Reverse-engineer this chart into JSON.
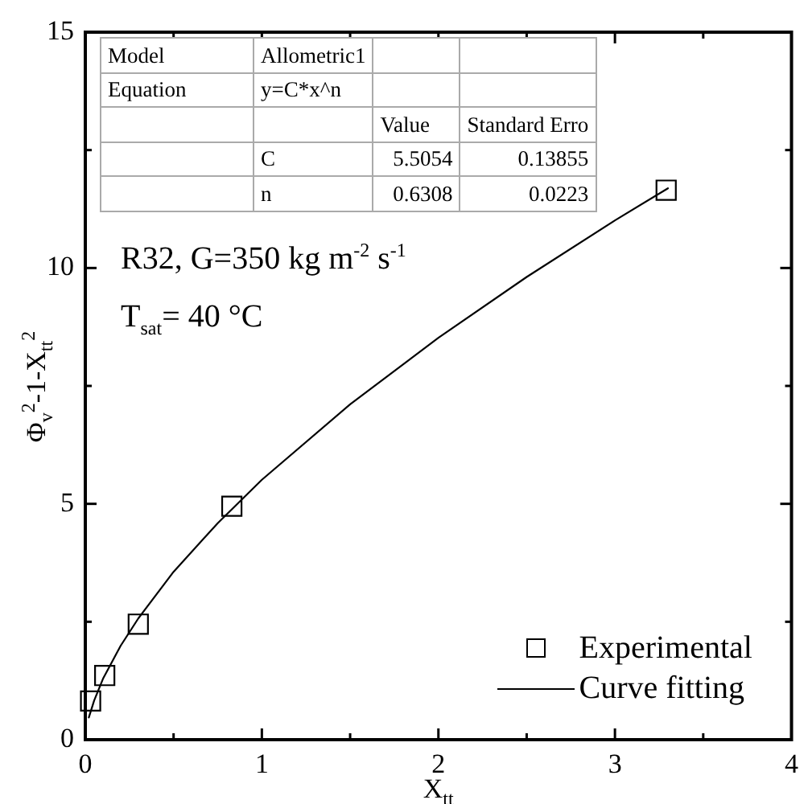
{
  "chart_data": {
    "type": "scatter",
    "xlabel": "X$_{tt}$",
    "ylabel": "Φ$_{v}$$^{2}$-1-X$_{tt}$$^{2}$",
    "xlim": [
      0,
      4
    ],
    "xticks": [
      0,
      {
        "value": 0.5,
        "label": null
      },
      1,
      {
        "value": 1.5,
        "label": null
      },
      2,
      {
        "value": 2.5,
        "label": null
      },
      3,
      {
        "value": 3.5,
        "label": null
      },
      4
    ],
    "ylim": [
      0,
      15
    ],
    "yticks": [
      0,
      {
        "value": 2.5,
        "label": null
      },
      5,
      {
        "value": 7.5,
        "label": null
      },
      10,
      {
        "value": 12.5,
        "label": null
      },
      15
    ],
    "grid": false,
    "legend": "bottom right",
    "series": [
      {
        "name": "Experimental",
        "type": "scatter",
        "marker": "square",
        "color": "#000000",
        "x": [
          0.03,
          0.11,
          0.3,
          0.83,
          3.29
        ],
        "values": [
          0.82,
          1.36,
          2.45,
          4.95,
          11.65
        ]
      },
      {
        "name": "Curve fitting",
        "type": "line",
        "marker": "none",
        "line_style": "solid",
        "color": "#000000",
        "x": [
          0.02,
          0.05,
          0.1,
          0.2,
          0.3,
          0.5,
          0.75,
          1,
          1.5,
          2,
          2.5,
          3,
          3.3
        ],
        "values": [
          0.47,
          0.83,
          1.29,
          1.99,
          2.57,
          3.56,
          4.59,
          5.51,
          7.11,
          8.52,
          9.81,
          11.01,
          11.69
        ]
      }
    ],
    "annotations": [
      "Model",
      "Allometric1",
      "Equation",
      "y=C*x^n",
      "Value",
      "Standard Erro",
      "C",
      "5.5054",
      "0.13855",
      "n",
      "0.6308",
      "0.0223",
      "R32, G=350 kg m$^{-2}$ s$^{-1}$",
      "T$_{sat}$= 40 °C"
    ]
  }
}
